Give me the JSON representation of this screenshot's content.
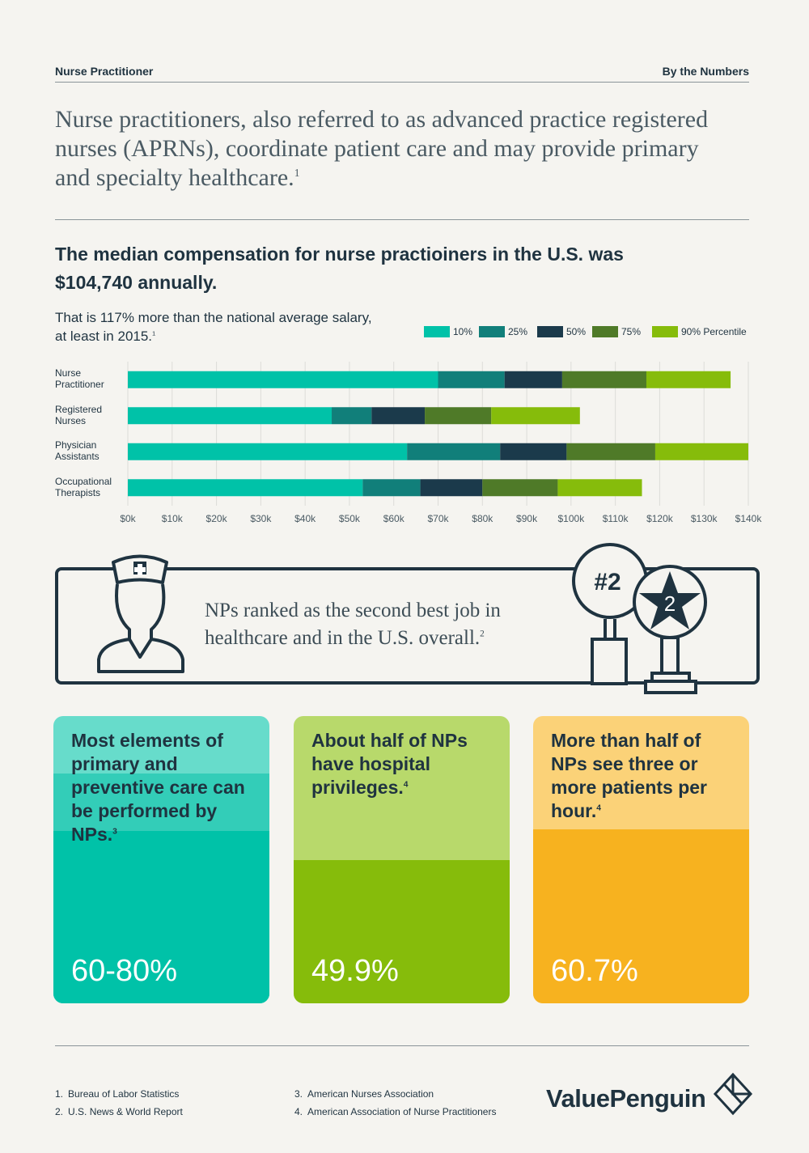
{
  "header": {
    "left": "Nurse Practitioner",
    "right": "By the Numbers"
  },
  "intro": {
    "text": "Nurse practitioners, also referred to as advanced practice registered nurses (APRNs), coordinate patient care and may provide primary and specialty healthcare.",
    "note": "1"
  },
  "chart_data": {
    "type": "bar",
    "orientation": "horizontal",
    "stacked": true,
    "title": "The median compensation for nurse practioiners in the U.S. was $104,740 annually.",
    "subtitle": "That is 117% more than the national average salary, at least in 2015.",
    "subtitle_note": "1",
    "categories": [
      "Nurse Practitioner",
      "Registered Nurses",
      "Physician Assistants",
      "Occupational Therapists"
    ],
    "series": [
      {
        "name": "10%",
        "color": "#00c2a8",
        "values": [
          70,
          46,
          63,
          53
        ]
      },
      {
        "name": "25%",
        "color": "#117f7a",
        "values": [
          15,
          9,
          21,
          13
        ]
      },
      {
        "name": "50%",
        "color": "#1b3a4b",
        "values": [
          13,
          12,
          15,
          14
        ]
      },
      {
        "name": "75%",
        "color": "#4f7a28",
        "values": [
          19,
          15,
          20,
          17
        ]
      },
      {
        "name": "90% Percentile",
        "color": "#86bc0b",
        "values": [
          19,
          20,
          21,
          19
        ]
      }
    ],
    "xlim": [
      0,
      140
    ],
    "xticks": [
      {
        "value": 0,
        "label": "$0k"
      },
      {
        "value": 10,
        "label": "$10k"
      },
      {
        "value": 20,
        "label": "$20k"
      },
      {
        "value": 30,
        "label": "$30k"
      },
      {
        "value": 40,
        "label": "$40k"
      },
      {
        "value": 50,
        "label": "$50k"
      },
      {
        "value": 60,
        "label": "$60k"
      },
      {
        "value": 70,
        "label": "$70k"
      },
      {
        "value": 80,
        "label": "$80k"
      },
      {
        "value": 90,
        "label": "$90k"
      },
      {
        "value": 100,
        "label": "$100k"
      },
      {
        "value": 110,
        "label": "$110k"
      },
      {
        "value": 120,
        "label": "$120k"
      },
      {
        "value": 130,
        "label": "$130k"
      },
      {
        "value": 140,
        "label": "$140k"
      }
    ],
    "grid": true,
    "legend": "top-right"
  },
  "banner": {
    "text": "NPs ranked as the second best job in healthcare and in the U.S. overall.",
    "note": "2",
    "badge": "#2",
    "star_badge": "2"
  },
  "cards": [
    {
      "text": "Most elements of primary and preventive care can be performed by NPs.",
      "note": "3",
      "stat": "60-80%",
      "range": [
        60,
        80
      ],
      "colors": {
        "light": "#67dccb",
        "mid": "#33cdb8",
        "dark": "#00c2a8"
      }
    },
    {
      "text": "About half of NPs have hospital privileges.",
      "note": "4",
      "stat": "49.9%",
      "value": 49.9,
      "colors": {
        "light": "#b8d96b",
        "dark": "#86bc0b"
      }
    },
    {
      "text": "More than half of NPs see three or more patients per hour.",
      "note": "4",
      "stat": "60.7%",
      "value": 60.7,
      "colors": {
        "light": "#fbd278",
        "dark": "#f7b21f"
      }
    }
  ],
  "footnotes": [
    {
      "num": "1.",
      "text": "Bureau of Labor Statistics"
    },
    {
      "num": "2.",
      "text": "U.S. News & World Report"
    },
    {
      "num": "3.",
      "text": "American Nurses Association"
    },
    {
      "num": "4.",
      "text": "American Association of Nurse Practitioners"
    }
  ],
  "logo": "ValuePenguin"
}
